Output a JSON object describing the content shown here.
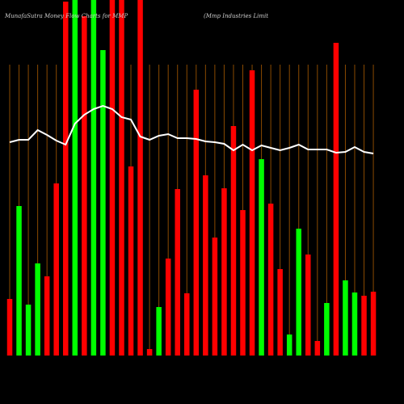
{
  "chart_data": {
    "type": "bar",
    "title": "MunafaSutra  Money Flow  Charts for MMP",
    "subtitle": "(Mmp Industries Limit",
    "categories": [
      null,
      null,
      null,
      null,
      null,
      null,
      null,
      null,
      null,
      null,
      null,
      null,
      null,
      null,
      null,
      null,
      null,
      null,
      null,
      null,
      null,
      null,
      null,
      null,
      null,
      null,
      null,
      null,
      null,
      null,
      null,
      null,
      null,
      null,
      null,
      null,
      null,
      null,
      null,
      null
    ],
    "values": [
      70,
      185,
      63,
      114,
      98,
      213,
      438,
      440,
      420,
      440,
      378,
      440,
      440,
      234,
      440,
      8,
      60,
      120,
      206,
      77,
      329,
      223,
      146,
      207,
      284,
      180,
      353,
      243,
      188,
      107,
      26,
      157,
      125,
      18,
      65,
      387,
      93,
      78,
      74,
      79
    ],
    "colors": [
      "#ff0000",
      "#00ff00",
      "#00ff00",
      "#00ff00",
      "#ff0000",
      "#ff0000",
      "#ff0000",
      "#00ff00",
      "#ff0000",
      "#00ff00",
      "#00ff00",
      "#ff0000",
      "#ff0000",
      "#ff0000",
      "#ff0000",
      "#ff0000",
      "#00ff00",
      "#ff0000",
      "#ff0000",
      "#ff0000",
      "#ff0000",
      "#ff0000",
      "#ff0000",
      "#ff0000",
      "#ff0000",
      "#ff0000",
      "#ff0000",
      "#00ff00",
      "#ff0000",
      "#ff0000",
      "#00ff00",
      "#00ff00",
      "#ff0000",
      "#ff0000",
      "#00ff00",
      "#ff0000",
      "#00ff00",
      "#00ff00",
      "#ff0000",
      "#ff0000"
    ],
    "line": {
      "color": "#ffffff",
      "values": [
        264,
        267,
        267,
        279,
        273,
        266,
        261,
        287,
        298,
        305,
        309,
        305,
        295,
        292,
        271,
        267,
        272,
        274,
        269,
        269,
        268,
        265,
        264,
        262,
        254,
        261,
        254,
        260,
        257,
        254,
        257,
        261,
        255,
        255,
        255,
        251,
        252,
        258,
        252,
        250
      ]
    },
    "ylim": [
      0,
      440
    ],
    "grid": true,
    "grid_color": "#8a4a00"
  }
}
